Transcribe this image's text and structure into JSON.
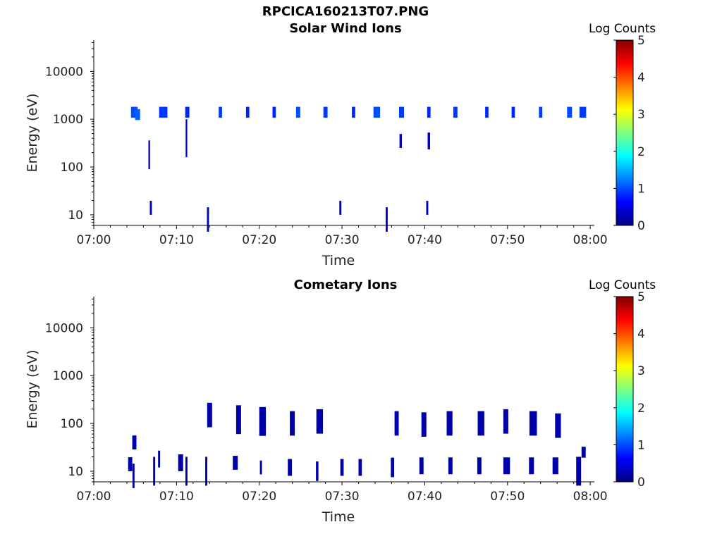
{
  "figure": {
    "filename_title": "RPCICA160213T07.PNG"
  },
  "chart_data": [
    {
      "type": "heatmap",
      "title": "Solar Wind Ions",
      "xlabel": "Time",
      "ylabel": "Energy (eV)",
      "x_ticks": [
        "07:00",
        "07:10",
        "07:20",
        "07:30",
        "07:40",
        "07:50",
        "08:00"
      ],
      "x_range_minutes": [
        0,
        60.5
      ],
      "y_scale": "log",
      "y_ticks": [
        10,
        100,
        1000,
        10000
      ],
      "y_tick_labels": [
        "10",
        "100",
        "1000",
        "10000"
      ],
      "y_range": [
        6,
        45000
      ],
      "colorbar": {
        "label": "Log Counts",
        "range": [
          0,
          5
        ],
        "ticks": [
          "0",
          "1",
          "2",
          "3",
          "4",
          "5"
        ],
        "colormap": "jet"
      },
      "grid": false,
      "pixels": [
        {
          "t": 4.9,
          "e": 1400,
          "c": 1.0,
          "w": 0.8,
          "h": 1.3
        },
        {
          "t": 5.3,
          "e": 1250,
          "c": 1.1,
          "w": 0.6,
          "h": 1.3
        },
        {
          "t": 8.4,
          "e": 1400,
          "c": 0.9,
          "w": 1.0,
          "h": 1.3
        },
        {
          "t": 11.3,
          "e": 1400,
          "c": 0.8,
          "w": 0.5,
          "h": 1.3
        },
        {
          "t": 15.3,
          "e": 1400,
          "c": 0.9,
          "w": 0.4,
          "h": 1.3
        },
        {
          "t": 18.6,
          "e": 1400,
          "c": 0.8,
          "w": 0.4,
          "h": 1.3
        },
        {
          "t": 21.8,
          "e": 1400,
          "c": 0.8,
          "w": 0.4,
          "h": 1.3
        },
        {
          "t": 24.7,
          "e": 1400,
          "c": 1.0,
          "w": 0.5,
          "h": 1.3
        },
        {
          "t": 28.0,
          "e": 1400,
          "c": 0.9,
          "w": 0.5,
          "h": 1.3
        },
        {
          "t": 31.4,
          "e": 1400,
          "c": 0.8,
          "w": 0.4,
          "h": 1.3
        },
        {
          "t": 34.2,
          "e": 1400,
          "c": 1.0,
          "w": 0.8,
          "h": 1.3
        },
        {
          "t": 37.2,
          "e": 1400,
          "c": 0.9,
          "w": 0.6,
          "h": 1.3
        },
        {
          "t": 40.5,
          "e": 1400,
          "c": 0.8,
          "w": 0.4,
          "h": 1.3
        },
        {
          "t": 43.7,
          "e": 1400,
          "c": 0.9,
          "w": 0.5,
          "h": 1.3
        },
        {
          "t": 47.5,
          "e": 1400,
          "c": 0.8,
          "w": 0.4,
          "h": 1.3
        },
        {
          "t": 50.7,
          "e": 1400,
          "c": 0.8,
          "w": 0.4,
          "h": 1.3
        },
        {
          "t": 54.0,
          "e": 1400,
          "c": 0.9,
          "w": 0.4,
          "h": 1.3
        },
        {
          "t": 57.5,
          "e": 1400,
          "c": 1.0,
          "w": 0.6,
          "h": 1.3
        },
        {
          "t": 59.1,
          "e": 1400,
          "c": 0.9,
          "w": 0.8,
          "h": 1.3
        },
        {
          "t": 6.9,
          "e": 14,
          "c": 0.3,
          "w": 0.25,
          "h": 1.4
        },
        {
          "t": 13.8,
          "e": 8,
          "c": 0.3,
          "w": 0.25,
          "h": 1.8
        },
        {
          "t": 29.8,
          "e": 14,
          "c": 0.3,
          "w": 0.25,
          "h": 1.4
        },
        {
          "t": 35.4,
          "e": 8,
          "c": 0.4,
          "w": 0.25,
          "h": 1.8
        },
        {
          "t": 40.3,
          "e": 14,
          "c": 0.3,
          "w": 0.25,
          "h": 1.4
        },
        {
          "t": 11.2,
          "e": 400,
          "c": 0.4,
          "w": 0.2,
          "h": 2.5
        },
        {
          "t": 6.7,
          "e": 180,
          "c": 0.3,
          "w": 0.2,
          "h": 2.0
        },
        {
          "t": 37.1,
          "e": 350,
          "c": 0.4,
          "w": 0.3,
          "h": 1.4
        },
        {
          "t": 40.5,
          "e": 350,
          "c": 0.4,
          "w": 0.3,
          "h": 1.5
        }
      ]
    },
    {
      "type": "heatmap",
      "title": "Cometary Ions",
      "xlabel": "Time",
      "ylabel": "Energy (eV)",
      "x_ticks": [
        "07:00",
        "07:10",
        "07:20",
        "07:30",
        "07:40",
        "07:50",
        "08:00"
      ],
      "x_range_minutes": [
        0,
        60.5
      ],
      "y_scale": "log",
      "y_ticks": [
        10,
        100,
        1000,
        10000
      ],
      "y_tick_labels": [
        "10",
        "100",
        "1000",
        "10000"
      ],
      "y_range": [
        6,
        45000
      ],
      "colorbar": {
        "label": "Log Counts",
        "range": [
          0,
          5
        ],
        "ticks": [
          "0",
          "1",
          "2",
          "3",
          "4",
          "5"
        ],
        "colormap": "jet"
      },
      "grid": false,
      "pixels": [
        {
          "t": 4.4,
          "e": 14,
          "c": 0.2,
          "w": 0.5,
          "h": 1.4
        },
        {
          "t": 4.8,
          "e": 8,
          "c": 0.2,
          "w": 0.25,
          "h": 1.8
        },
        {
          "t": 4.9,
          "e": 40,
          "c": 0.2,
          "w": 0.5,
          "h": 1.4
        },
        {
          "t": 7.3,
          "e": 10,
          "c": 0.2,
          "w": 0.25,
          "h": 2.0
        },
        {
          "t": 7.9,
          "e": 18,
          "c": 0.2,
          "w": 0.25,
          "h": 1.5
        },
        {
          "t": 10.5,
          "e": 15,
          "c": 0.2,
          "w": 0.6,
          "h": 1.5
        },
        {
          "t": 11.2,
          "e": 10,
          "c": 0.2,
          "w": 0.25,
          "h": 2.0
        },
        {
          "t": 13.6,
          "e": 10,
          "c": 0.2,
          "w": 0.25,
          "h": 2.0
        },
        {
          "t": 14.0,
          "e": 150,
          "c": 0.2,
          "w": 0.6,
          "h": 1.8
        },
        {
          "t": 17.1,
          "e": 15,
          "c": 0.2,
          "w": 0.6,
          "h": 1.4
        },
        {
          "t": 17.5,
          "e": 120,
          "c": 0.2,
          "w": 0.6,
          "h": 2.0
        },
        {
          "t": 20.2,
          "e": 12,
          "c": 0.2,
          "w": 0.25,
          "h": 1.4
        },
        {
          "t": 20.4,
          "e": 110,
          "c": 0.2,
          "w": 0.8,
          "h": 2.0
        },
        {
          "t": 23.7,
          "e": 12,
          "c": 0.2,
          "w": 0.5,
          "h": 1.5
        },
        {
          "t": 24.0,
          "e": 100,
          "c": 0.2,
          "w": 0.6,
          "h": 1.8
        },
        {
          "t": 27.0,
          "e": 10,
          "c": 0.2,
          "w": 0.3,
          "h": 1.6
        },
        {
          "t": 27.3,
          "e": 110,
          "c": 0.2,
          "w": 0.8,
          "h": 1.8
        },
        {
          "t": 30.0,
          "e": 12,
          "c": 0.2,
          "w": 0.4,
          "h": 1.5
        },
        {
          "t": 32.2,
          "e": 12,
          "c": 0.2,
          "w": 0.4,
          "h": 1.5
        },
        {
          "t": 36.1,
          "e": 12,
          "c": 0.2,
          "w": 0.4,
          "h": 1.6
        },
        {
          "t": 36.6,
          "e": 100,
          "c": 0.2,
          "w": 0.5,
          "h": 1.8
        },
        {
          "t": 39.6,
          "e": 13,
          "c": 0.2,
          "w": 0.5,
          "h": 1.5
        },
        {
          "t": 39.9,
          "e": 95,
          "c": 0.2,
          "w": 0.6,
          "h": 1.8
        },
        {
          "t": 43.1,
          "e": 13,
          "c": 0.2,
          "w": 0.5,
          "h": 1.5
        },
        {
          "t": 43.0,
          "e": 100,
          "c": 0.2,
          "w": 0.7,
          "h": 1.8
        },
        {
          "t": 46.6,
          "e": 13,
          "c": 0.2,
          "w": 0.5,
          "h": 1.5
        },
        {
          "t": 46.8,
          "e": 100,
          "c": 0.2,
          "w": 0.8,
          "h": 1.8
        },
        {
          "t": 49.9,
          "e": 13,
          "c": 0.2,
          "w": 0.8,
          "h": 1.5
        },
        {
          "t": 49.8,
          "e": 110,
          "c": 0.2,
          "w": 0.6,
          "h": 1.8
        },
        {
          "t": 52.9,
          "e": 13,
          "c": 0.2,
          "w": 0.6,
          "h": 1.5
        },
        {
          "t": 53.1,
          "e": 100,
          "c": 0.2,
          "w": 0.9,
          "h": 1.8
        },
        {
          "t": 55.8,
          "e": 13,
          "c": 0.2,
          "w": 0.7,
          "h": 1.5
        },
        {
          "t": 56.1,
          "e": 90,
          "c": 0.2,
          "w": 0.7,
          "h": 1.8
        },
        {
          "t": 58.6,
          "e": 10,
          "c": 0.2,
          "w": 0.6,
          "h": 2.0
        },
        {
          "t": 59.2,
          "e": 25,
          "c": 0.2,
          "w": 0.5,
          "h": 1.3
        }
      ]
    }
  ]
}
